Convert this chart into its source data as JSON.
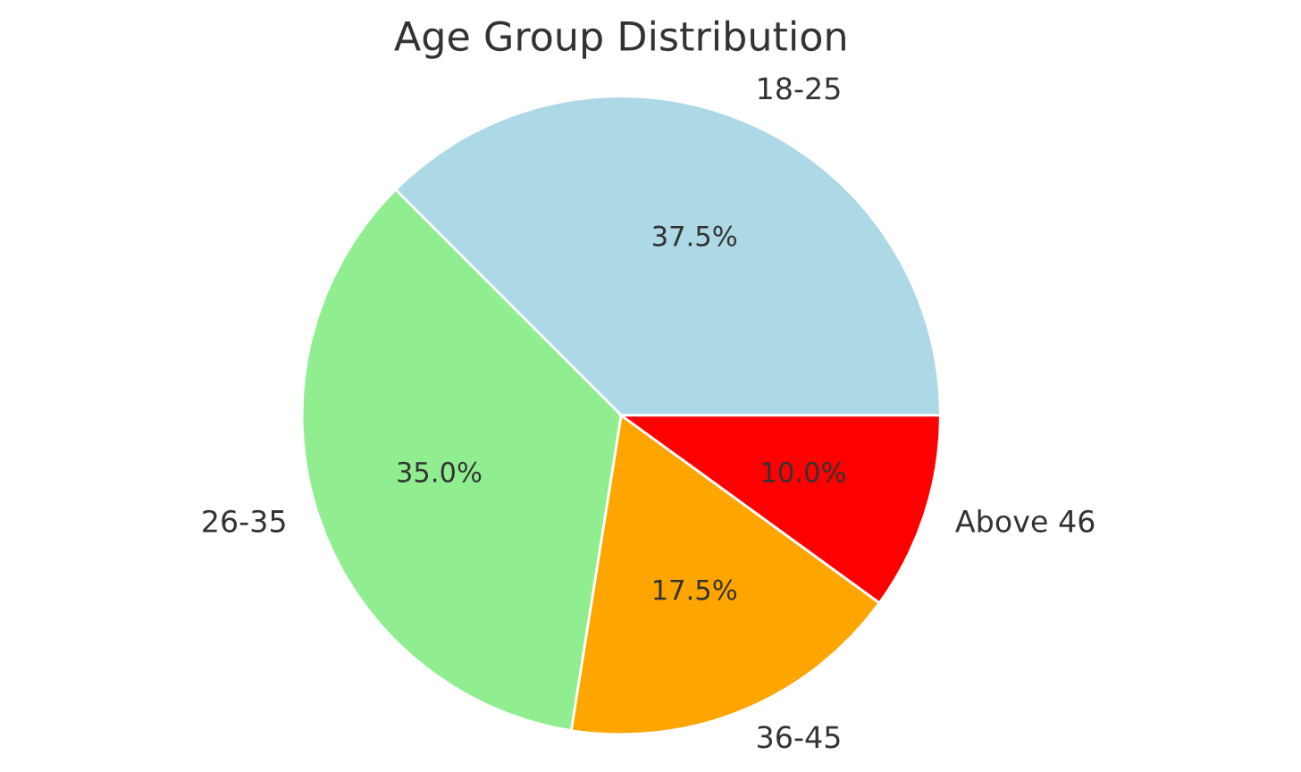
{
  "chart_data": {
    "type": "pie",
    "title": "Age Group Distribution",
    "categories": [
      "18-25",
      "26-35",
      "36-45",
      "Above 46"
    ],
    "values": [
      37.5,
      35.0,
      17.5,
      10.0
    ],
    "value_labels": [
      "37.5%",
      "35.0%",
      "17.5%",
      "10.0%"
    ],
    "colors": [
      "#add8e6",
      "#90ee90",
      "#ffa500",
      "#ff0000"
    ]
  }
}
